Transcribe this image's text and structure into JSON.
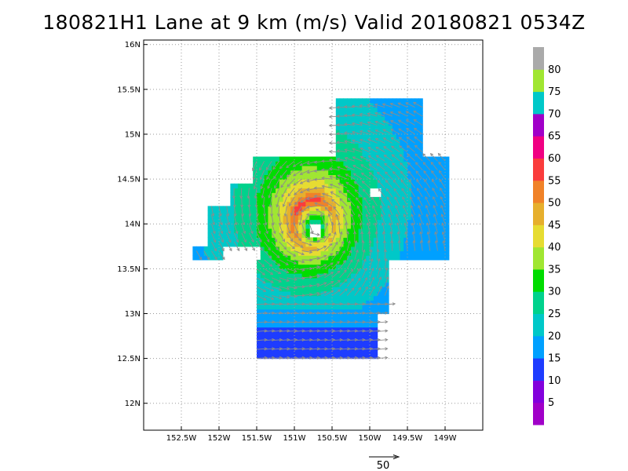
{
  "title": "180821H1 Lane at 9 km (m/s) Valid 20180821 0534Z",
  "chart_data": {
    "type": "heatmap",
    "title": "180821H1 Lane at 9 km (m/s) Valid 20180821 0534Z",
    "field": "wind speed",
    "units": "m/s",
    "xlim": [
      -153.0,
      -148.5
    ],
    "ylim": [
      11.7,
      16.05
    ],
    "x_ticks": [
      {
        "value": -152.5,
        "label": "152.5W"
      },
      {
        "value": -152.0,
        "label": "152W"
      },
      {
        "value": -151.5,
        "label": "151.5W"
      },
      {
        "value": -151.0,
        "label": "151W"
      },
      {
        "value": -150.5,
        "label": "150.5W"
      },
      {
        "value": -150.0,
        "label": "150W"
      },
      {
        "value": -149.5,
        "label": "149.5W"
      },
      {
        "value": -149.0,
        "label": "149W"
      }
    ],
    "y_ticks": [
      {
        "value": 12.0,
        "label": "12N"
      },
      {
        "value": 12.5,
        "label": "12.5N"
      },
      {
        "value": 13.0,
        "label": "13N"
      },
      {
        "value": 13.5,
        "label": "13.5N"
      },
      {
        "value": 14.0,
        "label": "14N"
      },
      {
        "value": 14.5,
        "label": "14.5N"
      },
      {
        "value": 15.0,
        "label": "15N"
      },
      {
        "value": 15.5,
        "label": "15.5N"
      },
      {
        "value": 16.0,
        "label": "16N"
      }
    ],
    "grid": true,
    "storm_center": {
      "lon": -150.74,
      "lat": 14.0
    },
    "max_wind_radius_deg": 0.27,
    "peak_wind": 52,
    "colorbar": {
      "labels": [
        "5",
        "10",
        "15",
        "20",
        "25",
        "30",
        "35",
        "40",
        "45",
        "50",
        "55",
        "60",
        "65",
        "70",
        "75",
        "80"
      ],
      "bins": [
        {
          "from": 0,
          "to": 5,
          "color": "#a000c8"
        },
        {
          "from": 5,
          "to": 10,
          "color": "#8200dc"
        },
        {
          "from": 10,
          "to": 15,
          "color": "#1e3cff"
        },
        {
          "from": 15,
          "to": 20,
          "color": "#00a0ff"
        },
        {
          "from": 20,
          "to": 25,
          "color": "#00c8c8"
        },
        {
          "from": 25,
          "to": 30,
          "color": "#00d28c"
        },
        {
          "from": 30,
          "to": 35,
          "color": "#00dc00"
        },
        {
          "from": 35,
          "to": 40,
          "color": "#a0e632"
        },
        {
          "from": 40,
          "to": 45,
          "color": "#e6dc32"
        },
        {
          "from": 45,
          "to": 50,
          "color": "#e6af2d"
        },
        {
          "from": 50,
          "to": 55,
          "color": "#f08228"
        },
        {
          "from": 55,
          "to": 60,
          "color": "#fa3c3c"
        },
        {
          "from": 60,
          "to": 65,
          "color": "#f00082"
        },
        {
          "from": 65,
          "to": 70,
          "color": "#a000c8"
        },
        {
          "from": 70,
          "to": 75,
          "color": "#00c8c8"
        },
        {
          "from": 75,
          "to": 80,
          "color": "#a0e632"
        },
        {
          "from": 80,
          "to": 85,
          "color": "#aaaaaa"
        }
      ]
    },
    "reference_vector": {
      "label": "50",
      "value": 50
    }
  }
}
